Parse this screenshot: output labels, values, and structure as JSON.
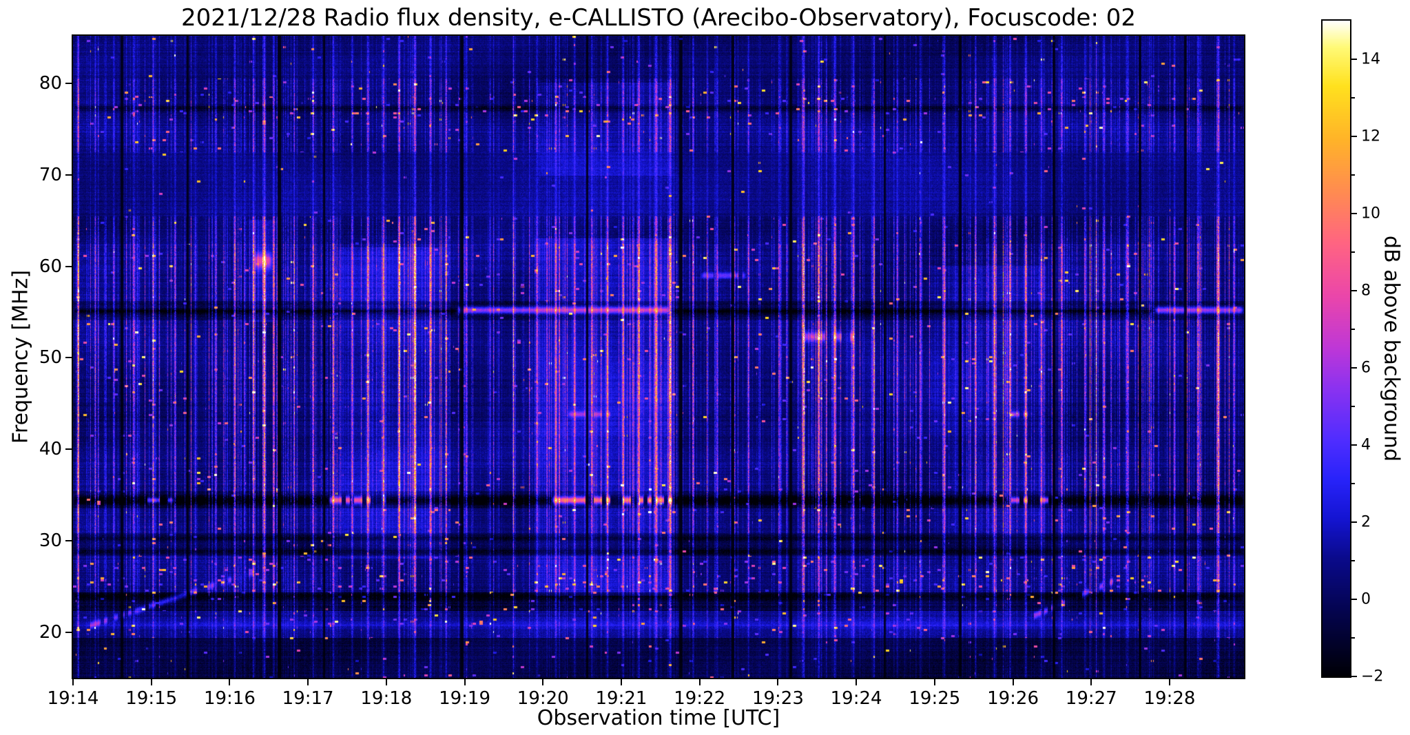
{
  "chart_data": {
    "type": "heatmap",
    "title": "2021/12/28  Radio flux density, e-CALLISTO (Arecibo-Observatory), Focuscode: 02",
    "xlabel": "Observation time [UTC]",
    "ylabel": "Frequency [MHz]",
    "colorbar_label": "dB above background",
    "x_ticks": [
      "19:14",
      "19:15",
      "19:16",
      "19:17",
      "19:18",
      "19:19",
      "19:20",
      "19:21",
      "19:22",
      "19:23",
      "19:24",
      "19:25",
      "19:26",
      "19:27",
      "19:28"
    ],
    "x_range_minutes": [
      0,
      14.95
    ],
    "y_ticks": [
      80,
      70,
      60,
      50,
      40,
      30,
      20
    ],
    "y_range_mhz": [
      15,
      85.2
    ],
    "value_range_db": [
      -2,
      15
    ],
    "colorbar_ticks": [
      14,
      12,
      10,
      8,
      6,
      4,
      2,
      0,
      -2
    ],
    "colorbar_tick_labels": [
      "14",
      "12",
      "10",
      "8",
      "6",
      "4",
      "2",
      "0",
      "−2"
    ],
    "colorbar_minor_ticks": [
      13,
      11,
      9,
      7,
      5,
      3,
      1,
      -1
    ],
    "legend_position": "right-colorbar",
    "grid": false,
    "colormap": {
      "name": "gnuplot2-like",
      "stops": [
        [
          0.0,
          [
            0,
            0,
            6
          ]
        ],
        [
          0.1,
          [
            4,
            4,
            80
          ]
        ],
        [
          0.18,
          [
            10,
            10,
            140
          ]
        ],
        [
          0.24,
          [
            20,
            20,
            210
          ]
        ],
        [
          0.3,
          [
            40,
            35,
            250
          ]
        ],
        [
          0.36,
          [
            80,
            45,
            255
          ]
        ],
        [
          0.44,
          [
            140,
            50,
            240
          ]
        ],
        [
          0.5,
          [
            190,
            55,
            215
          ]
        ],
        [
          0.58,
          [
            235,
            70,
            170
          ]
        ],
        [
          0.66,
          [
            255,
            100,
            130
          ]
        ],
        [
          0.74,
          [
            255,
            140,
            80
          ]
        ],
        [
          0.82,
          [
            255,
            180,
            40
          ]
        ],
        [
          0.9,
          [
            255,
            225,
            30
          ]
        ],
        [
          0.96,
          [
            255,
            250,
            120
          ]
        ],
        [
          1.0,
          [
            255,
            255,
            255
          ]
        ]
      ]
    },
    "spectrogram": {
      "seed": 20211228,
      "bands": [
        [
          14.9,
          19.3,
          -0.6,
          0.35,
          0.7
        ],
        [
          19.3,
          22.3,
          0.9,
          0.5,
          1.2
        ],
        [
          22.3,
          24.3,
          -0.7,
          0.6,
          1.6
        ],
        [
          24.3,
          28.3,
          0.5,
          0.9,
          2.6
        ],
        [
          28.3,
          30.8,
          -0.4,
          0.7,
          1.0
        ],
        [
          30.8,
          33.5,
          0.4,
          1.1,
          0.9
        ],
        [
          33.5,
          35.4,
          -0.6,
          1.2,
          0.7
        ],
        [
          35.4,
          39.5,
          0.5,
          1.3,
          0.8
        ],
        [
          39.5,
          43.0,
          0.35,
          1.2,
          0.7
        ],
        [
          43.0,
          45.2,
          0.2,
          1.2,
          1.0
        ],
        [
          45.2,
          54.2,
          0.5,
          1.4,
          0.9
        ],
        [
          54.2,
          56.2,
          -0.5,
          1.1,
          0.6
        ],
        [
          56.2,
          62.5,
          0.55,
          1.35,
          1.0
        ],
        [
          62.5,
          65.5,
          0.25,
          1.0,
          0.8
        ],
        [
          65.5,
          72.5,
          0.85,
          0.35,
          0.25
        ],
        [
          72.5,
          76.2,
          0.7,
          0.8,
          1.1
        ],
        [
          76.2,
          78.6,
          0.3,
          0.9,
          1.9
        ],
        [
          78.6,
          80.6,
          0.2,
          0.8,
          1.1
        ],
        [
          80.6,
          85.3,
          0.3,
          0.45,
          0.5
        ]
      ],
      "streaks": [
        [
          0.06,
          5,
          0.012
        ],
        [
          0.28,
          4,
          0.01
        ],
        [
          0.52,
          3,
          0.01
        ],
        [
          0.78,
          4,
          0.012
        ],
        [
          1.02,
          5,
          0.011
        ],
        [
          1.3,
          4,
          0.012
        ],
        [
          1.56,
          3,
          0.01
        ],
        [
          1.82,
          4,
          0.012
        ],
        [
          2.06,
          5,
          0.014
        ],
        [
          2.3,
          6,
          0.012
        ],
        [
          2.44,
          7,
          0.016
        ],
        [
          2.56,
          5,
          0.01
        ],
        [
          2.82,
          4,
          0.01
        ],
        [
          3.06,
          5,
          0.012
        ],
        [
          3.32,
          6,
          0.014
        ],
        [
          3.56,
          5,
          0.012
        ],
        [
          3.76,
          6,
          0.014
        ],
        [
          3.96,
          5,
          0.012
        ],
        [
          4.16,
          6,
          0.014
        ],
        [
          4.36,
          7,
          0.016
        ],
        [
          4.56,
          6,
          0.014
        ],
        [
          4.76,
          5,
          0.012
        ],
        [
          5.02,
          4,
          0.012
        ],
        [
          5.32,
          3,
          0.01
        ],
        [
          5.62,
          4,
          0.012
        ],
        [
          5.92,
          4,
          0.012
        ],
        [
          6.16,
          5,
          0.014
        ],
        [
          6.4,
          5,
          0.012
        ],
        [
          6.62,
          5,
          0.012
        ],
        [
          6.82,
          6,
          0.014
        ],
        [
          7.02,
          6,
          0.014
        ],
        [
          7.22,
          6,
          0.014
        ],
        [
          7.44,
          7,
          0.02
        ],
        [
          7.62,
          8,
          0.016
        ],
        [
          7.92,
          3,
          0.01
        ],
        [
          8.22,
          4,
          0.012
        ],
        [
          8.62,
          4,
          0.012
        ],
        [
          9.02,
          4,
          0.012
        ],
        [
          9.32,
          6,
          0.014
        ],
        [
          9.52,
          6,
          0.014
        ],
        [
          9.72,
          7,
          0.014
        ],
        [
          9.96,
          6,
          0.014
        ],
        [
          10.22,
          5,
          0.012
        ],
        [
          10.52,
          4,
          0.012
        ],
        [
          10.82,
          4,
          0.012
        ],
        [
          11.12,
          5,
          0.012
        ],
        [
          11.52,
          5,
          0.012
        ],
        [
          11.76,
          6,
          0.014
        ],
        [
          11.96,
          6,
          0.014
        ],
        [
          12.16,
          6,
          0.014
        ],
        [
          12.36,
          5,
          0.012
        ],
        [
          12.62,
          4,
          0.012
        ],
        [
          12.92,
          4,
          0.012
        ],
        [
          13.16,
          5,
          0.012
        ],
        [
          13.46,
          4,
          0.012
        ],
        [
          13.76,
          3,
          0.01
        ],
        [
          14.06,
          4,
          0.012
        ],
        [
          14.36,
          5,
          0.014
        ],
        [
          14.62,
          6,
          0.014
        ],
        [
          14.82,
          4,
          0.012
        ]
      ],
      "dropouts": [
        [
          0.62,
          0.015
        ],
        [
          1.46,
          0.012
        ],
        [
          2.63,
          0.015
        ],
        [
          3.2,
          0.012
        ],
        [
          4.96,
          0.015
        ],
        [
          6.56,
          0.012
        ],
        [
          7.76,
          0.018
        ],
        [
          8.42,
          0.012
        ],
        [
          9.16,
          0.012
        ],
        [
          10.36,
          0.012
        ],
        [
          11.32,
          0.012
        ],
        [
          12.52,
          0.012
        ],
        [
          13.62,
          0.012
        ],
        [
          14.2,
          0.012
        ]
      ],
      "washes": [
        [
          3.35,
          4.75,
          28,
          62,
          1.1
        ],
        [
          5.85,
          7.72,
          24,
          63,
          1.4
        ],
        [
          5.9,
          7.7,
          70,
          80,
          0.9
        ],
        [
          10.9,
          12.45,
          30,
          60,
          0.7
        ],
        [
          2.2,
          2.62,
          54,
          65,
          1.2
        ]
      ],
      "segments": [
        [
          55.2,
          4.9,
          7.62,
          6,
          0.35,
          0
        ],
        [
          55.2,
          13.8,
          14.95,
          6,
          0.35,
          0
        ],
        [
          55.1,
          0,
          4.9,
          -2.2,
          0.3,
          0
        ],
        [
          55.1,
          7.62,
          13.8,
          -2.2,
          0.3,
          0
        ],
        [
          34.4,
          0,
          14.95,
          -2.5,
          0.55,
          0
        ],
        [
          34.4,
          3.25,
          4.0,
          10,
          0.4,
          1
        ],
        [
          34.4,
          6.1,
          7.7,
          11,
          0.4,
          1
        ],
        [
          34.4,
          11.9,
          12.5,
          9,
          0.35,
          1
        ],
        [
          34.4,
          0.9,
          1.3,
          7,
          0.3,
          1
        ],
        [
          30.2,
          0,
          14.95,
          -1.5,
          0.25,
          0
        ],
        [
          77.3,
          0,
          14.95,
          -1.8,
          0.3,
          0
        ],
        [
          23.8,
          0,
          14.95,
          -1.5,
          0.4,
          0
        ],
        [
          28.8,
          0,
          14.95,
          -1.2,
          0.3,
          0
        ],
        [
          20.8,
          0,
          14.95,
          1.2,
          0.5,
          0
        ],
        [
          60.6,
          2.3,
          2.55,
          6,
          0.8,
          0
        ],
        [
          43.8,
          6.3,
          7.0,
          4,
          0.3,
          1
        ],
        [
          43.8,
          11.9,
          12.3,
          5,
          0.3,
          1
        ],
        [
          52.3,
          9.3,
          10.0,
          5,
          0.5,
          1
        ],
        [
          59.0,
          8.0,
          8.6,
          4,
          0.3,
          1
        ]
      ],
      "diagonals": [
        [
          0.15,
          20.5,
          2.3,
          26.5,
          4,
          0.35
        ],
        [
          12.2,
          21.5,
          13.4,
          26.0,
          5,
          0.35
        ]
      ]
    }
  }
}
